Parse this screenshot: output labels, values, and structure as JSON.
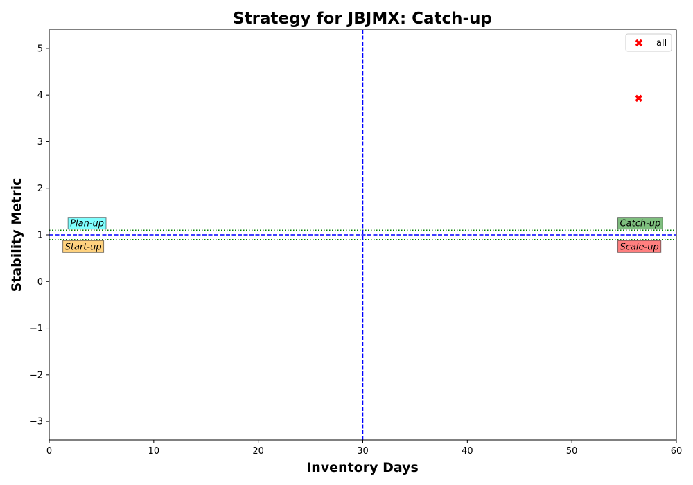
{
  "chart_data": {
    "type": "scatter",
    "title": "Strategy for JBJMX: Catch-up",
    "xlabel": "Inventory Days",
    "ylabel": "Stability Metric",
    "xlim": [
      0,
      60
    ],
    "ylim": [
      -3.4,
      5.4
    ],
    "xticks": [
      0,
      10,
      20,
      30,
      40,
      50,
      60
    ],
    "xtick_labels": [
      "0",
      "10",
      "20",
      "30",
      "40",
      "50",
      "60"
    ],
    "yticks": [
      -3,
      -2,
      -1,
      0,
      1,
      2,
      3,
      4,
      5
    ],
    "ytick_labels": [
      "−3",
      "−2",
      "−1",
      "0",
      "1",
      "2",
      "3",
      "4",
      "5"
    ],
    "series": [
      {
        "name": "all",
        "x": [
          56.4
        ],
        "y": [
          3.93
        ],
        "marker": "X",
        "color": "#ff0000"
      }
    ],
    "reference_lines": {
      "vertical": {
        "x": 30,
        "color": "#0000ff",
        "style": "dashed"
      },
      "horizontal": {
        "y": 1,
        "color": "#0000ff",
        "style": "dashed"
      },
      "band": {
        "y_low": 0.9,
        "y_high": 1.1,
        "color": "#008000",
        "style": "dotted"
      }
    },
    "quadrant_labels": [
      {
        "text": "Plan-up",
        "x": 2,
        "y": 1.25,
        "color": "#00ffff"
      },
      {
        "text": "Start-up",
        "x": 1.5,
        "y": 0.75,
        "color": "#ffa500"
      },
      {
        "text": "Catch-up",
        "x": 54.6,
        "y": 1.25,
        "color": "#008000"
      },
      {
        "text": "Scale-up",
        "x": 54.6,
        "y": 0.75,
        "color": "#ff0000"
      }
    ],
    "legend": {
      "entries": [
        "all"
      ],
      "position": "top-right"
    },
    "grid": false
  }
}
